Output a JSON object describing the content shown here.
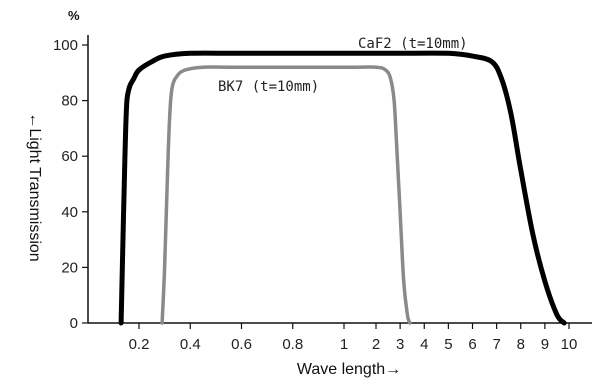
{
  "chart_data": {
    "type": "line",
    "title": "",
    "xlabel": "Wave length→",
    "ylabel": "←Light Transmission",
    "y_unit": "%",
    "ylim": [
      0,
      100
    ],
    "y_ticks": [
      0,
      20,
      40,
      60,
      80,
      100
    ],
    "x_ticks": [
      {
        "value": 0.2,
        "label": "0.2"
      },
      {
        "value": 0.4,
        "label": "0.4"
      },
      {
        "value": 0.6,
        "label": "0.6"
      },
      {
        "value": 0.8,
        "label": "0.8"
      },
      {
        "value": 1,
        "label": "1"
      },
      {
        "value": 2,
        "label": "2"
      },
      {
        "value": 3,
        "label": "3"
      },
      {
        "value": 4,
        "label": "4"
      },
      {
        "value": 5,
        "label": "5"
      },
      {
        "value": 6,
        "label": "6"
      },
      {
        "value": 7,
        "label": "7"
      },
      {
        "value": 8,
        "label": "8"
      },
      {
        "value": 9,
        "label": "9"
      },
      {
        "value": 10,
        "label": "10"
      }
    ],
    "grid": false,
    "legend": "inline labels",
    "series": [
      {
        "name": "CaF2 (t=10mm)",
        "color": "#000000",
        "points": [
          [
            0.13,
            0
          ],
          [
            0.14,
            40
          ],
          [
            0.15,
            75
          ],
          [
            0.16,
            84
          ],
          [
            0.18,
            88
          ],
          [
            0.2,
            91
          ],
          [
            0.25,
            94
          ],
          [
            0.3,
            96
          ],
          [
            0.4,
            97
          ],
          [
            0.6,
            97
          ],
          [
            1,
            97
          ],
          [
            2,
            97
          ],
          [
            3,
            97
          ],
          [
            5,
            97
          ],
          [
            6,
            96
          ],
          [
            6.8,
            94
          ],
          [
            7.2,
            88
          ],
          [
            7.6,
            75
          ],
          [
            8,
            55
          ],
          [
            8.5,
            32
          ],
          [
            9,
            15
          ],
          [
            9.5,
            3
          ],
          [
            9.8,
            0
          ]
        ]
      },
      {
        "name": "BK7 (t=10mm)",
        "color": "#8a8a8a",
        "points": [
          [
            0.29,
            0
          ],
          [
            0.3,
            20
          ],
          [
            0.31,
            50
          ],
          [
            0.32,
            75
          ],
          [
            0.33,
            85
          ],
          [
            0.35,
            89
          ],
          [
            0.38,
            91
          ],
          [
            0.45,
            92
          ],
          [
            0.6,
            92
          ],
          [
            1,
            92
          ],
          [
            2,
            92
          ],
          [
            2.4,
            91
          ],
          [
            2.6,
            88
          ],
          [
            2.75,
            80
          ],
          [
            2.85,
            65
          ],
          [
            3.0,
            40
          ],
          [
            3.15,
            15
          ],
          [
            3.3,
            3
          ],
          [
            3.4,
            0
          ]
        ]
      }
    ]
  }
}
